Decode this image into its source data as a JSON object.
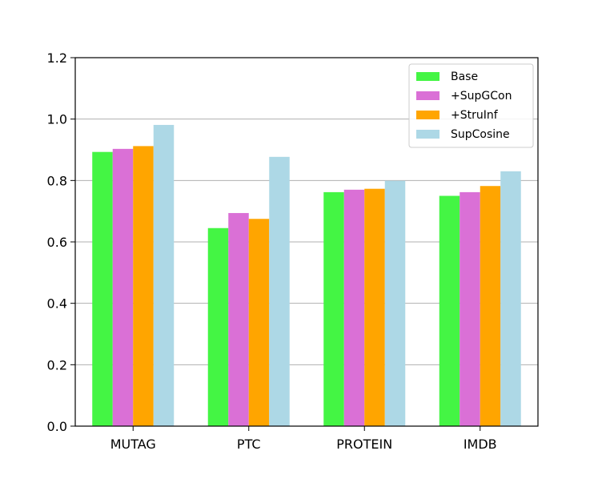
{
  "chart_data": {
    "type": "bar",
    "title": "",
    "xlabel": "",
    "ylabel": "",
    "categories": [
      "MUTAG",
      "PTC",
      "PROTEIN",
      "IMDB"
    ],
    "ylim": [
      0,
      1.2
    ],
    "yticks": [
      "0.0",
      "0.2",
      "0.4",
      "0.6",
      "0.8",
      "1.0",
      "1.2"
    ],
    "grid": "horizontal",
    "legend_position": "top-right",
    "series": [
      {
        "name": "Base",
        "color": "#44f544",
        "values": [
          0.893,
          0.645,
          0.762,
          0.75
        ]
      },
      {
        "name": "+SupGCon",
        "color": "#da70d6",
        "values": [
          0.903,
          0.694,
          0.77,
          0.762
        ]
      },
      {
        "name": "+StruInf",
        "color": "#ffa500",
        "values": [
          0.912,
          0.675,
          0.773,
          0.782
        ]
      },
      {
        "name": "SupCosine",
        "color": "#add8e6",
        "values": [
          0.981,
          0.877,
          0.799,
          0.83
        ]
      }
    ]
  }
}
